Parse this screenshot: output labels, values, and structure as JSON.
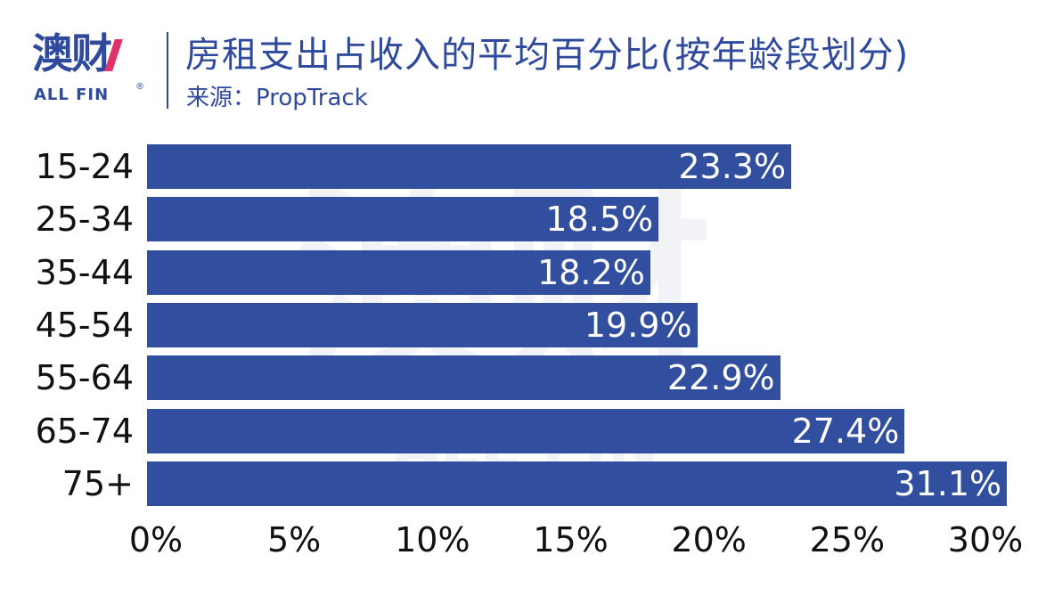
{
  "brand": {
    "name_cn": "澳财",
    "name_en": "ALL FIN",
    "registered": "®",
    "color": "#2f4a9c",
    "accent_color": "#e0336b"
  },
  "header": {
    "title": "房租支出占收入的平均百分比(按年龄段划分)",
    "source": "来源：PropTrack"
  },
  "watermark": {
    "cn": "澳财",
    "en": "ALL FIN"
  },
  "chart_data": {
    "type": "bar",
    "orientation": "horizontal",
    "title": "房租支出占收入的平均百分比(按年龄段划分)",
    "subtitle": "来源：PropTrack",
    "categories": [
      "15-24",
      "25-34",
      "35-44",
      "45-54",
      "55-64",
      "65-74",
      "75+"
    ],
    "values": [
      23.3,
      18.5,
      18.2,
      19.9,
      22.9,
      27.4,
      31.1
    ],
    "labels": [
      "23.3%",
      "18.5%",
      "18.2%",
      "19.9%",
      "22.9%",
      "27.4%",
      "31.1%"
    ],
    "xlabel": "",
    "ylabel": "",
    "xlim": [
      0,
      30
    ],
    "x_ticks": [
      "0%",
      "5%",
      "10%",
      "15%",
      "20%",
      "25%",
      "30%"
    ],
    "bar_color": "#324e9f",
    "label_color": "#ffffff",
    "grid": false,
    "legend": null
  }
}
